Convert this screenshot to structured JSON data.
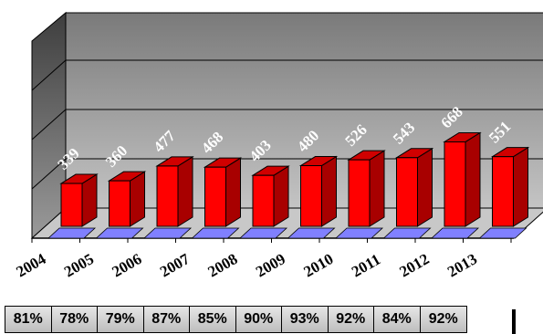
{
  "chart_data": {
    "type": "bar",
    "categories": [
      "2004",
      "2005",
      "2006",
      "2007",
      "2008",
      "2009",
      "2010",
      "2011",
      "2012",
      "2013"
    ],
    "values": [
      339,
      360,
      477,
      468,
      403,
      480,
      526,
      543,
      668,
      551
    ],
    "data_labels": [
      "339",
      "360",
      "477",
      "468",
      "403",
      "480",
      "526",
      "543",
      "668",
      "551"
    ],
    "title": "",
    "xlabel": "",
    "ylabel": "",
    "ylim": [
      0,
      800
    ],
    "grid": true,
    "legend": "none",
    "three_d": true,
    "colors": {
      "bar_front": "#ff0000",
      "bar_side": "#a80000",
      "bar_top": "#d00000",
      "floor": "#8080ff",
      "wall_back": "#9a9a9a",
      "wall_left": "#6e6e6e",
      "floor_plane": "#c8c8c8"
    }
  },
  "percent_row": {
    "cells": [
      "81%",
      "78%",
      "79%",
      "87%",
      "85%",
      "90%",
      "93%",
      "92%",
      "84%",
      "92%"
    ]
  }
}
